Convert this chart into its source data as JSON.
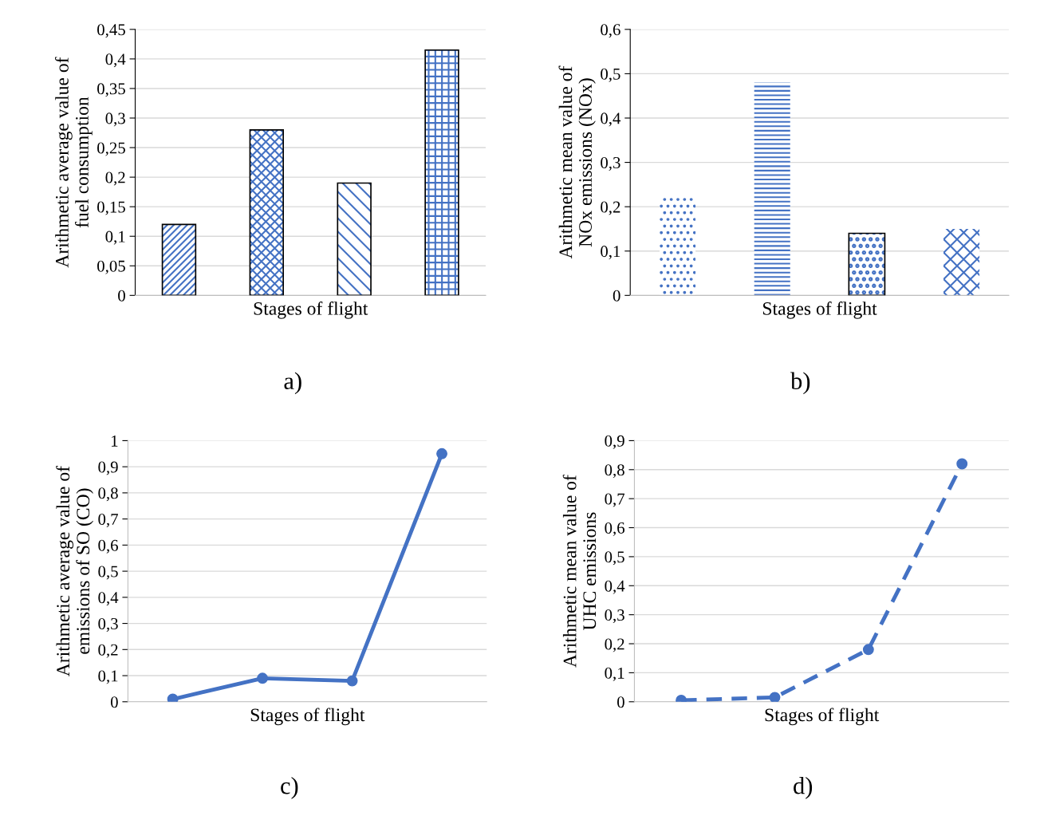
{
  "chart_data": [
    {
      "type": "bar",
      "categories": [
        null,
        null,
        null,
        null
      ],
      "values": [
        0.12,
        0.28,
        0.19,
        0.415
      ],
      "color": "#4472c4",
      "xlabel": "Stages of flight",
      "ylabel": "Arithmetic average value of\nfuel consumption",
      "ylim": [
        0,
        0.45
      ],
      "yticks": [
        0,
        {
          "value": 0.05,
          "label": "0,05"
        },
        {
          "value": 0.1,
          "label": "0,1"
        },
        {
          "value": 0.15,
          "label": "0,15"
        },
        {
          "value": 0.2,
          "label": "0,2"
        },
        {
          "value": 0.25,
          "label": "0,25"
        },
        {
          "value": 0.3,
          "label": "0,3"
        },
        {
          "value": 0.35,
          "label": "0,35"
        },
        {
          "value": 0.4,
          "label": "0,4"
        },
        {
          "value": 0.45,
          "label": "0,45"
        }
      ],
      "grid": "y",
      "annotations": [
        "a)"
      ]
    },
    {
      "type": "bar",
      "categories": [
        null,
        null,
        null,
        null
      ],
      "values": [
        0.225,
        0.48,
        0.14,
        0.15
      ],
      "color": "#4472c4",
      "xlabel": "Stages of flight",
      "ylabel": "Arithmetic mean value of\nNOx emissions (NOx)",
      "ylim": [
        0,
        0.6
      ],
      "yticks": [
        0,
        {
          "value": 0.1,
          "label": "0,1"
        },
        {
          "value": 0.2,
          "label": "0,2"
        },
        {
          "value": 0.3,
          "label": "0,3"
        },
        {
          "value": 0.4,
          "label": "0,4"
        },
        {
          "value": 0.5,
          "label": "0,5"
        },
        {
          "value": 0.6,
          "label": "0,6"
        }
      ],
      "grid": "y",
      "annotations": [
        "b)"
      ]
    },
    {
      "type": "line",
      "categories": [
        null,
        null,
        null,
        null
      ],
      "values": [
        0.01,
        0.09,
        0.08,
        0.95
      ],
      "color": "#4472c4",
      "marker": "circle",
      "line_style": "solid",
      "xlabel": "Stages of flight",
      "ylabel": "Arithmetic average value of\nemissions of SO (CO)",
      "ylim": [
        0,
        1
      ],
      "yticks": [
        0,
        {
          "value": 0.1,
          "label": "0,1"
        },
        {
          "value": 0.2,
          "label": "0,2"
        },
        {
          "value": 0.3,
          "label": "0,3"
        },
        {
          "value": 0.4,
          "label": "0,4"
        },
        {
          "value": 0.5,
          "label": "0,5"
        },
        {
          "value": 0.6,
          "label": "0,6"
        },
        {
          "value": 0.7,
          "label": "0,7"
        },
        {
          "value": 0.8,
          "label": "0,8"
        },
        {
          "value": 0.9,
          "label": "0,9"
        },
        1
      ],
      "grid": "y",
      "annotations": [
        "c)"
      ]
    },
    {
      "type": "line",
      "categories": [
        null,
        null,
        null,
        null
      ],
      "values": [
        0.005,
        0.015,
        0.18,
        0.82
      ],
      "color": "#4472c4",
      "marker": "circle",
      "line_style": "dashed",
      "xlabel": "Stages of flight",
      "ylabel": "Arithmetic mean value of\nUHC emissions",
      "ylim": [
        0,
        0.9
      ],
      "yticks": [
        0,
        {
          "value": 0.1,
          "label": "0,1"
        },
        {
          "value": 0.2,
          "label": "0,2"
        },
        {
          "value": 0.3,
          "label": "0,3"
        },
        {
          "value": 0.4,
          "label": "0,4"
        },
        {
          "value": 0.5,
          "label": "0,5"
        },
        {
          "value": 0.6,
          "label": "0,6"
        },
        {
          "value": 0.7,
          "label": "0,7"
        },
        {
          "value": 0.8,
          "label": "0,8"
        },
        {
          "value": 0.9,
          "label": "0,9"
        }
      ],
      "grid": "y",
      "annotations": [
        "d)"
      ]
    }
  ]
}
